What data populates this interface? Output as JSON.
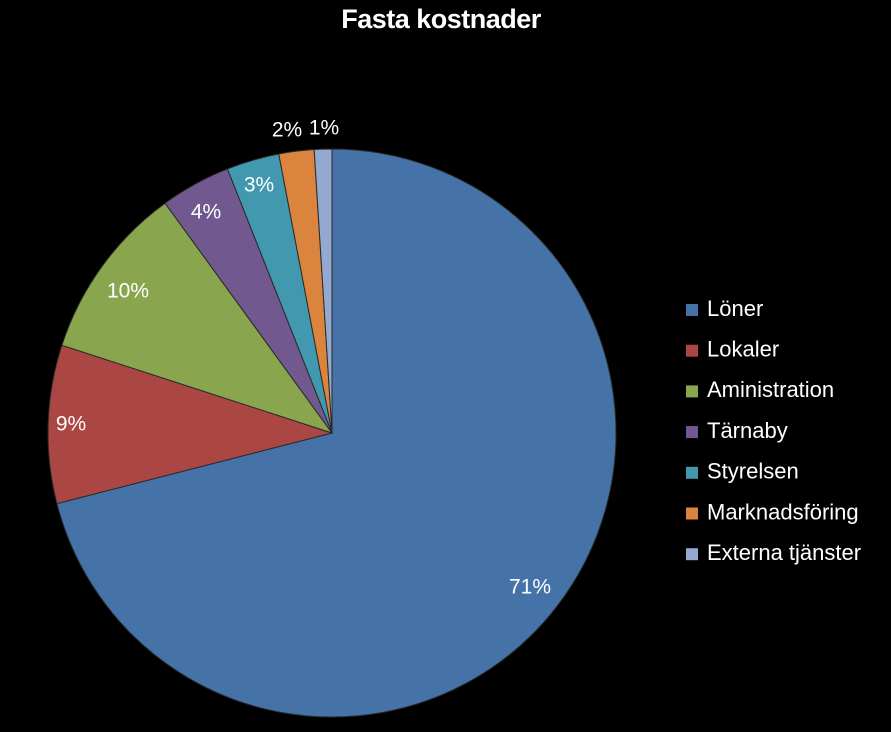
{
  "chart_data": {
    "type": "pie",
    "title": "Fasta kostnader",
    "legend_position": "right",
    "slices": [
      {
        "name": "Löner",
        "value": 71,
        "label": "71%",
        "color": "#4572A7"
      },
      {
        "name": "Lokaler",
        "value": 9,
        "label": "9%",
        "color": "#AA4643"
      },
      {
        "name": "Aministration",
        "value": 10,
        "label": "10%",
        "color": "#89A54E"
      },
      {
        "name": "Tärnaby",
        "value": 4,
        "label": "4%",
        "color": "#71588F"
      },
      {
        "name": "Styrelsen",
        "value": 3,
        "label": "3%",
        "color": "#4198AF"
      },
      {
        "name": "Marknadsföring",
        "value": 2,
        "label": "2%",
        "color": "#DB843D"
      },
      {
        "name": "Externa tjänster",
        "value": 1,
        "label": "1%",
        "color": "#93A9CF"
      }
    ]
  }
}
